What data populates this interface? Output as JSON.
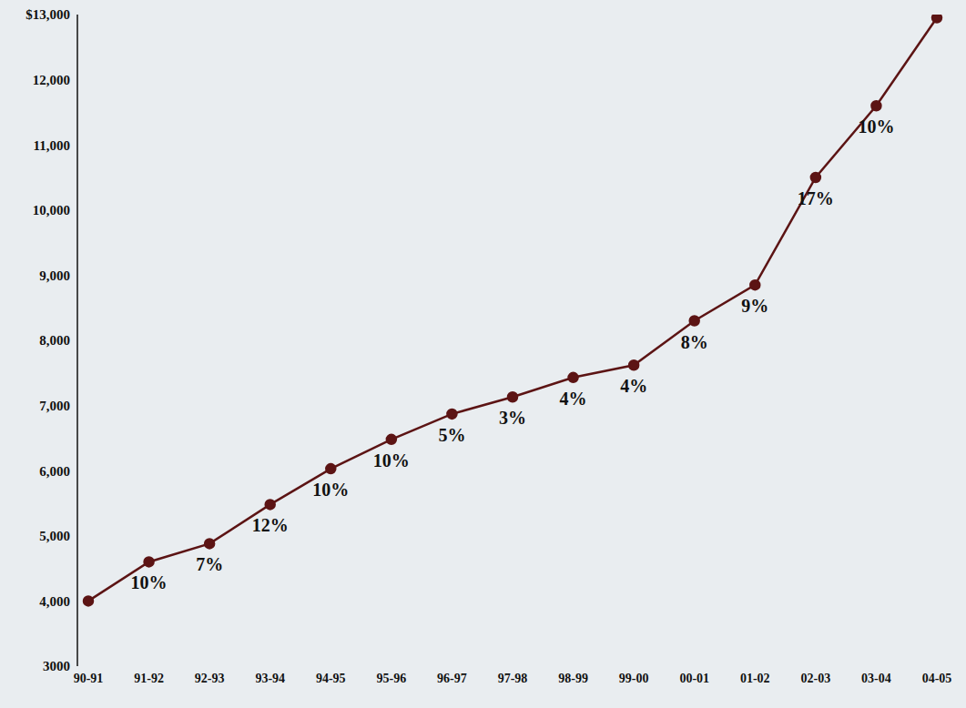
{
  "chart_data": {
    "type": "line",
    "categories": [
      "90-91",
      "91-92",
      "92-93",
      "93-94",
      "94-95",
      "95-96",
      "96-97",
      "97-98",
      "98-99",
      "99-00",
      "00-01",
      "01-02",
      "02-03",
      "03-04",
      "04-05"
    ],
    "values": [
      4000,
      4600,
      4880,
      5480,
      6030,
      6480,
      6870,
      7130,
      7430,
      7620,
      8300,
      8850,
      10500,
      11600,
      12950
    ],
    "annotations": [
      null,
      "10%",
      "7%",
      "12%",
      "10%",
      "10%",
      "5%",
      "3%",
      "4%",
      "4%",
      "8%",
      "9%",
      "17%",
      "10%",
      null
    ],
    "color": "#5c1414",
    "marker": "circle",
    "ylim": [
      3000,
      13000
    ],
    "yticks": [
      3000,
      {
        "value": 4000,
        "label": "4,000"
      },
      {
        "value": 5000,
        "label": "5,000"
      },
      {
        "value": 6000,
        "label": "6,000"
      },
      {
        "value": 7000,
        "label": "7,000"
      },
      {
        "value": 8000,
        "label": "8,000"
      },
      {
        "value": 9000,
        "label": "9,000"
      },
      {
        "value": 10000,
        "label": "10,000"
      },
      {
        "value": 11000,
        "label": "11,000"
      },
      {
        "value": 12000,
        "label": "12,000"
      },
      {
        "value": 13000,
        "label": "$13,000"
      }
    ],
    "grid": false
  }
}
